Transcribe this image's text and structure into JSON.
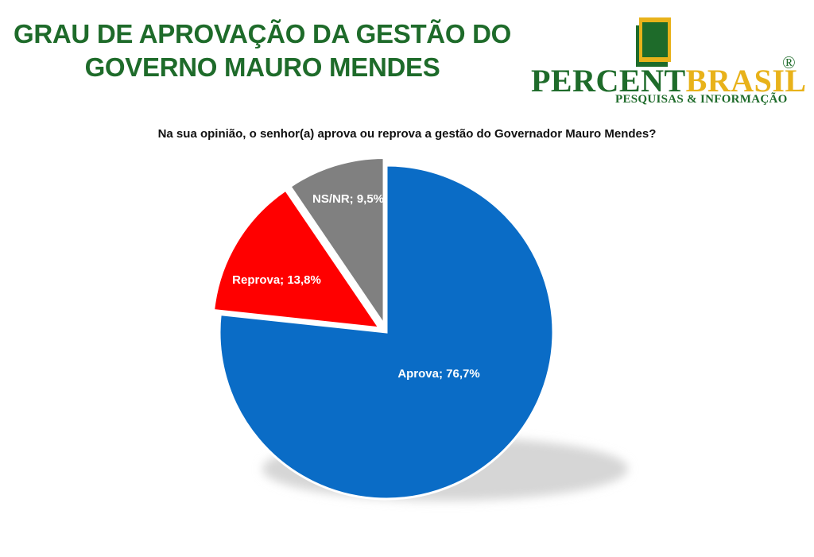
{
  "header": {
    "title_line1": "GRAU DE APROVAÇÃO DA GESTÃO DO",
    "title_line2": "GOVERNO MAURO MENDES"
  },
  "logo": {
    "name_part1": "PERCENT",
    "name_part2": "BRASIL",
    "registered": "®",
    "tagline": "PESQUISAS & INFORMAÇÃO"
  },
  "colors": {
    "title_green": "#1e6b2a",
    "logo_yellow": "#e8b21a",
    "aprova": "#0a6cc6",
    "reprova": "#ff0000",
    "nsnr": "#808080"
  },
  "chart_data": {
    "type": "pie",
    "title": "Na sua opinião, o senhor(a) aprova ou reprova a gestão do Governador Mauro Mendes?",
    "slices": [
      {
        "label": "Aprova; 76,7%",
        "category": "Aprova",
        "value": 76.7,
        "color": "#0a6cc6"
      },
      {
        "label": "Reprova; 13,8%",
        "category": "Reprova",
        "value": 13.8,
        "color": "#ff0000"
      },
      {
        "label": "NS/NR; 9,5%",
        "category": "NS/NR",
        "value": 9.5,
        "color": "#808080"
      }
    ]
  }
}
